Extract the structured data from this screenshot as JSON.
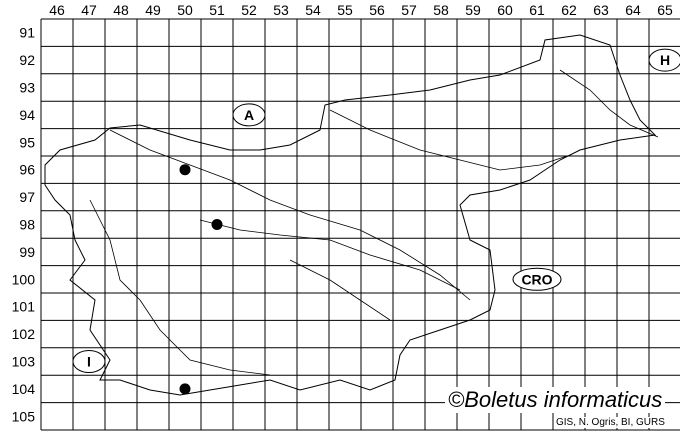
{
  "map": {
    "columns": [
      "46",
      "47",
      "48",
      "49",
      "50",
      "51",
      "52",
      "53",
      "54",
      "55",
      "56",
      "57",
      "58",
      "59",
      "60",
      "61",
      "62",
      "63",
      "64",
      "65"
    ],
    "rows": [
      "91",
      "92",
      "93",
      "94",
      "95",
      "96",
      "97",
      "98",
      "99",
      "100",
      "101",
      "102",
      "103",
      "104",
      "105"
    ],
    "neighbours": [
      {
        "label": "A",
        "col": "52",
        "row": "94"
      },
      {
        "label": "H",
        "col": "65",
        "row": "92"
      },
      {
        "label": "CRO",
        "col": "61",
        "row": "100"
      },
      {
        "label": "I",
        "col": "47",
        "row": "103"
      }
    ],
    "records": [
      {
        "col": "50",
        "row": "96"
      },
      {
        "col": "51",
        "row": "98"
      },
      {
        "col": "50",
        "row": "104"
      }
    ],
    "colors": {
      "line": "#000000",
      "background": "#ffffff",
      "record": "#000000"
    }
  },
  "copyright": "©Boletus informaticus",
  "credit": "GIS, N. Ogris, BI, GURS"
}
